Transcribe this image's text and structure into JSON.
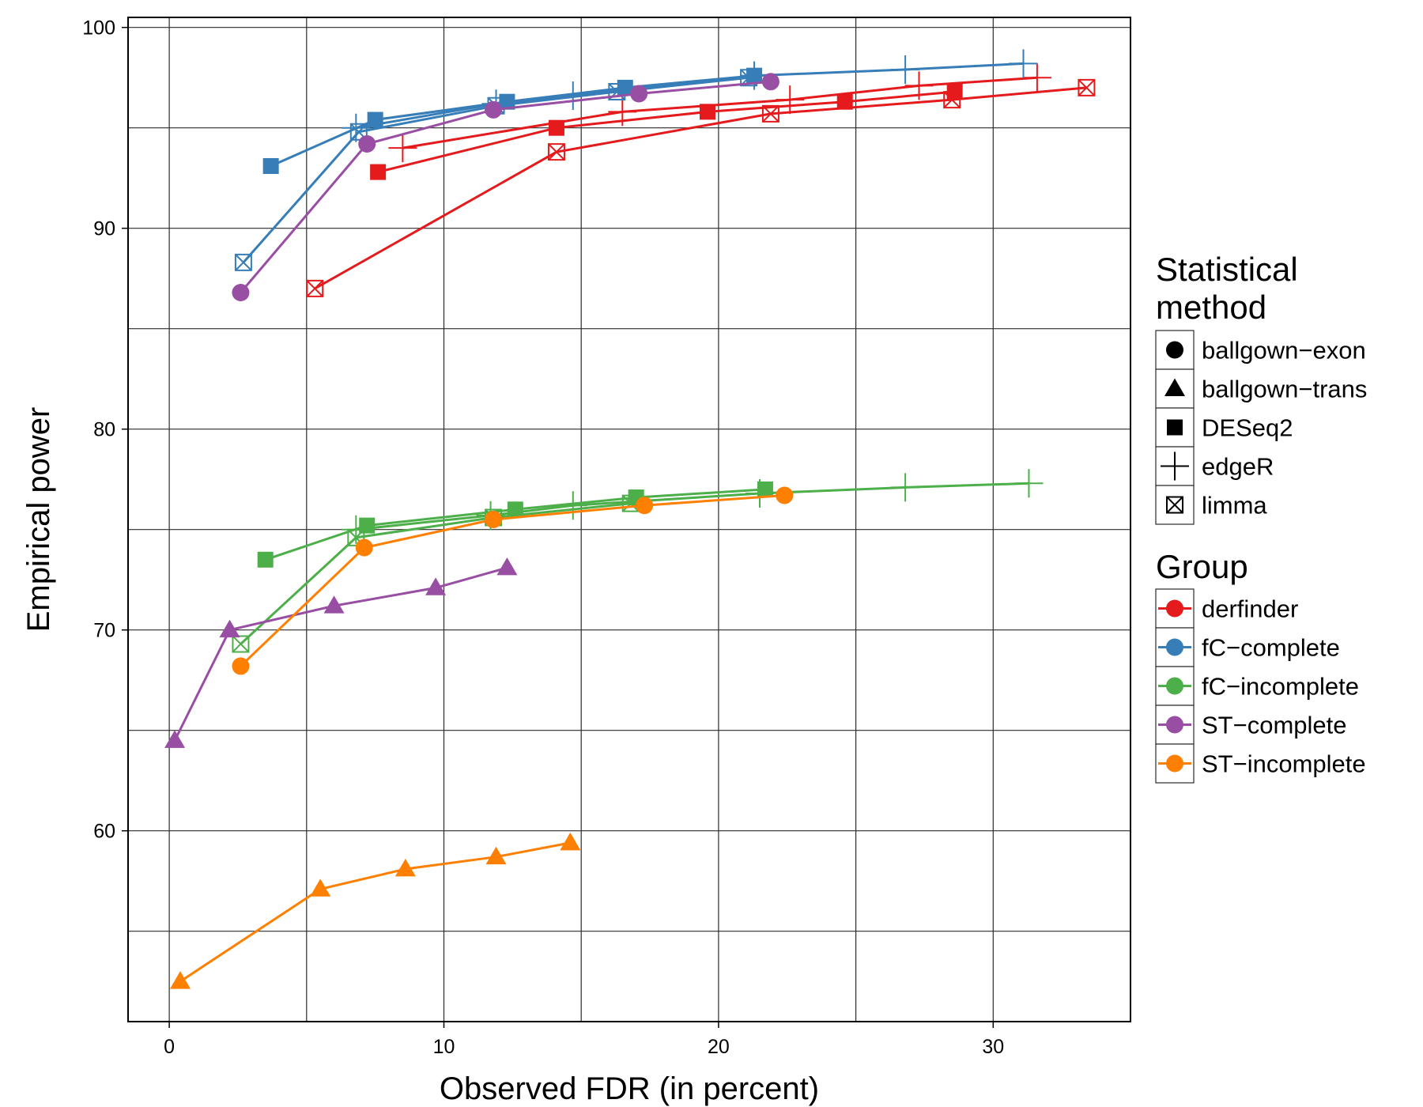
{
  "chart_data": {
    "type": "line",
    "xlabel": "Observed FDR (in percent)",
    "ylabel": "Empirical power",
    "xlim": [
      -1.5,
      35
    ],
    "ylim": [
      50.5,
      100.5
    ],
    "x_ticks": [
      0,
      10,
      20,
      30
    ],
    "y_ticks": [
      60,
      70,
      80,
      90,
      100
    ],
    "grid": true,
    "legend_position": "right",
    "legend_shape": {
      "title_lines": [
        "Statistical",
        "method"
      ],
      "entries": [
        {
          "label": "ballgown−exon",
          "shape": "circle"
        },
        {
          "label": "ballgown−trans",
          "shape": "triangle"
        },
        {
          "label": "DESeq2",
          "shape": "square"
        },
        {
          "label": "edgeR",
          "shape": "plus"
        },
        {
          "label": "limma",
          "shape": "boxx"
        }
      ]
    },
    "legend_group": {
      "title": "Group",
      "entries": [
        {
          "label": "derfinder",
          "color": "#e41a1c"
        },
        {
          "label": "fC−complete",
          "color": "#377eb8"
        },
        {
          "label": "fC−incomplete",
          "color": "#4daf4a"
        },
        {
          "label": "ST−complete",
          "color": "#984ea3"
        },
        {
          "label": "ST−incomplete",
          "color": "#ff7f00"
        }
      ]
    },
    "series": [
      {
        "group": "derfinder",
        "method": "DESeq2",
        "color": "#e41a1c",
        "shape": "square",
        "x": [
          7.6,
          14.1,
          19.6,
          24.6,
          28.6
        ],
        "y": [
          92.8,
          95.0,
          95.8,
          96.3,
          96.8
        ]
      },
      {
        "group": "derfinder",
        "method": "edgeR",
        "color": "#e41a1c",
        "shape": "plus",
        "x": [
          8.5,
          16.5,
          22.6,
          27.3,
          31.6
        ],
        "y": [
          94.0,
          95.8,
          96.4,
          97.1,
          97.5
        ]
      },
      {
        "group": "derfinder",
        "method": "limma",
        "color": "#e41a1c",
        "shape": "boxx",
        "x": [
          5.3,
          14.1,
          21.9,
          28.5,
          33.4
        ],
        "y": [
          87.0,
          93.8,
          95.7,
          96.4,
          97.0
        ]
      },
      {
        "group": "fC−complete",
        "method": "DESeq2",
        "color": "#377eb8",
        "shape": "square",
        "x": [
          3.7,
          7.5,
          12.3,
          16.6,
          21.3
        ],
        "y": [
          93.1,
          95.4,
          96.3,
          97.0,
          97.6
        ]
      },
      {
        "group": "fC−complete",
        "method": "edgeR",
        "color": "#377eb8",
        "shape": "plus",
        "x": [
          6.8,
          11.9,
          14.7,
          21.3,
          26.8,
          31.1
        ],
        "y": [
          95.0,
          96.2,
          96.6,
          97.6,
          97.9,
          98.2
        ]
      },
      {
        "group": "fC−complete",
        "method": "limma",
        "color": "#377eb8",
        "shape": "boxx",
        "x": [
          2.7,
          6.9,
          11.9,
          16.3,
          21.1
        ],
        "y": [
          88.3,
          94.8,
          96.1,
          96.8,
          97.5
        ]
      },
      {
        "group": "fC−incomplete",
        "method": "DESeq2",
        "color": "#4daf4a",
        "shape": "square",
        "x": [
          3.5,
          7.2,
          12.6,
          17.0,
          21.7
        ],
        "y": [
          73.5,
          75.2,
          76.0,
          76.6,
          77.0
        ]
      },
      {
        "group": "fC−incomplete",
        "method": "edgeR",
        "color": "#4daf4a",
        "shape": "plus",
        "x": [
          6.8,
          11.7,
          14.7,
          21.5,
          26.8,
          31.3
        ],
        "y": [
          75.0,
          75.7,
          76.2,
          76.8,
          77.1,
          77.3
        ]
      },
      {
        "group": "fC−incomplete",
        "method": "limma",
        "color": "#4daf4a",
        "shape": "boxx",
        "x": [
          2.6,
          6.8,
          11.8,
          16.8
        ],
        "y": [
          69.3,
          74.6,
          75.6,
          76.3
        ]
      },
      {
        "group": "ST−complete",
        "method": "ballgown−exon",
        "color": "#984ea3",
        "shape": "circle",
        "x": [
          2.6,
          7.2,
          11.8,
          17.1,
          21.9
        ],
        "y": [
          86.8,
          94.2,
          95.9,
          96.7,
          97.3
        ]
      },
      {
        "group": "ST−complete",
        "method": "ballgown−trans",
        "color": "#984ea3",
        "shape": "triangle",
        "x": [
          0.2,
          2.2,
          6.0,
          9.7,
          12.3
        ],
        "y": [
          64.5,
          70.0,
          71.2,
          72.1,
          73.1
        ]
      },
      {
        "group": "ST−incomplete",
        "method": "ballgown−exon",
        "color": "#ff7f00",
        "shape": "circle",
        "x": [
          2.6,
          7.1,
          11.8,
          17.3,
          22.4
        ],
        "y": [
          68.2,
          74.1,
          75.5,
          76.2,
          76.7
        ]
      },
      {
        "group": "ST−incomplete",
        "method": "ballgown−trans",
        "color": "#ff7f00",
        "shape": "triangle",
        "x": [
          0.4,
          5.5,
          8.6,
          11.9,
          14.6
        ],
        "y": [
          52.5,
          57.1,
          58.1,
          58.7,
          59.4
        ]
      }
    ]
  }
}
